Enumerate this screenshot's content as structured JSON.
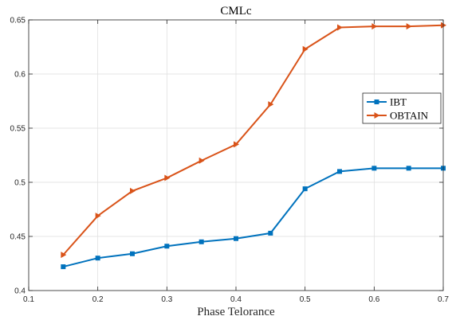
{
  "chart_data": {
    "type": "line",
    "title": "CMLc",
    "xlabel": "Phase Telorance",
    "ylabel": "",
    "xlim": [
      0.1,
      0.7
    ],
    "ylim": [
      0.4,
      0.65
    ],
    "xticks": [
      0.1,
      0.2,
      0.3,
      0.4,
      0.5,
      0.6,
      0.7
    ],
    "yticks": [
      0.4,
      0.45,
      0.5,
      0.55,
      0.6,
      0.65
    ],
    "xtick_labels": [
      "0.1",
      "0.2",
      "0.3",
      "0.4",
      "0.5",
      "0.6",
      "0.7"
    ],
    "ytick_labels": [
      "0.4",
      "0.45",
      "0.5",
      "0.55",
      "0.6",
      "0.65"
    ],
    "grid": true,
    "legend_position": "right",
    "x": [
      0.15,
      0.2,
      0.25,
      0.3,
      0.35,
      0.4,
      0.45,
      0.5,
      0.55,
      0.6,
      0.65,
      0.7
    ],
    "series": [
      {
        "name": "IBT",
        "color": "#0072BD",
        "marker": "square",
        "values": [
          0.422,
          0.43,
          0.434,
          0.441,
          0.445,
          0.448,
          0.453,
          0.494,
          0.51,
          0.513,
          0.513,
          0.513
        ]
      },
      {
        "name": "OBTAIN",
        "color": "#D95319",
        "marker": "triangle-right",
        "values": [
          0.433,
          0.469,
          0.492,
          0.504,
          0.52,
          0.535,
          0.572,
          0.623,
          0.643,
          0.644,
          0.644,
          0.645
        ]
      }
    ]
  }
}
